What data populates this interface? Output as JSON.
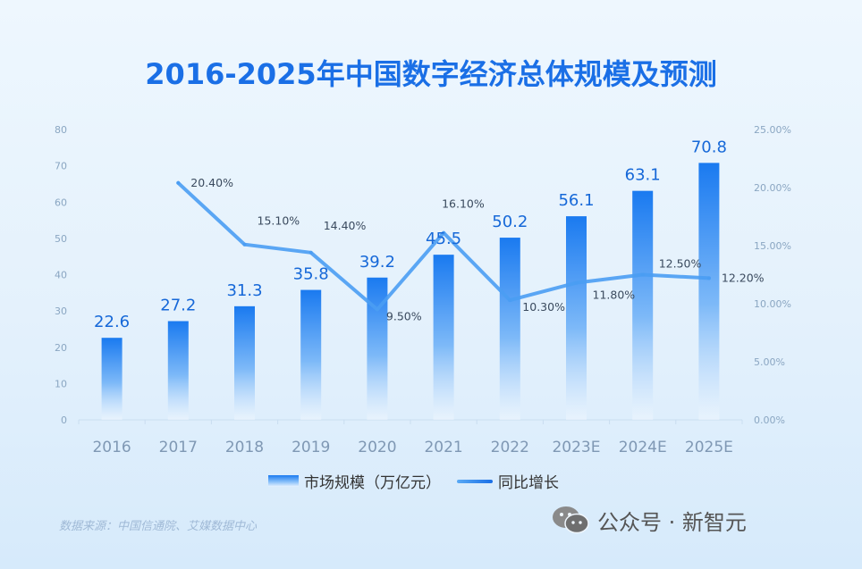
{
  "title": "2016-2025年中国数字经济总体规模及预测",
  "source": "数据来源：中国信通院、艾媒数据中心",
  "watermark": {
    "text": "公众号 · 新智元",
    "icon": "wechat-icon"
  },
  "legend": {
    "bar_label": "市场规模（万亿元）",
    "line_label": "同比增长"
  },
  "colors": {
    "accent": "#1a6fe6",
    "bar_top": "#1a7af0",
    "line": "#5aaaf5",
    "label": "#1668d8"
  },
  "chart_data": {
    "type": "bar",
    "title": "2016-2025年中国数字经济总体规模及预测",
    "categories": [
      "2016",
      "2017",
      "2018",
      "2019",
      "2020",
      "2021",
      "2022",
      "2023E",
      "2024E",
      "2025E"
    ],
    "series": [
      {
        "name": "市场规模（万亿元）",
        "type": "bar",
        "axis": "left",
        "values": [
          22.6,
          27.2,
          31.3,
          35.8,
          39.2,
          45.5,
          50.2,
          56.1,
          63.1,
          70.8
        ],
        "labels": [
          "22.6",
          "27.2",
          "31.3",
          "35.8",
          "39.2",
          "45.5",
          "50.2",
          "56.1",
          "63.1",
          "70.8"
        ]
      },
      {
        "name": "同比增长",
        "type": "line",
        "axis": "right",
        "values": [
          null,
          20.4,
          15.1,
          14.4,
          9.5,
          16.1,
          10.3,
          11.8,
          12.5,
          12.2
        ],
        "labels": [
          "",
          "20.40%",
          "15.10%",
          "14.40%",
          "9.50%",
          "16.10%",
          "10.30%",
          "11.80%",
          "12.50%",
          "12.20%"
        ]
      }
    ],
    "y_left": {
      "range": [
        0,
        80
      ],
      "ticks": [
        "0",
        "10",
        "20",
        "30",
        "40",
        "50",
        "60",
        "70",
        "80"
      ]
    },
    "y_right": {
      "range": [
        0,
        25
      ],
      "ticks": [
        "0.00%",
        "5.00%",
        "10.00%",
        "15.00%",
        "20.00%",
        "25.00%"
      ]
    },
    "grid": false,
    "legend_position": "bottom-center"
  }
}
